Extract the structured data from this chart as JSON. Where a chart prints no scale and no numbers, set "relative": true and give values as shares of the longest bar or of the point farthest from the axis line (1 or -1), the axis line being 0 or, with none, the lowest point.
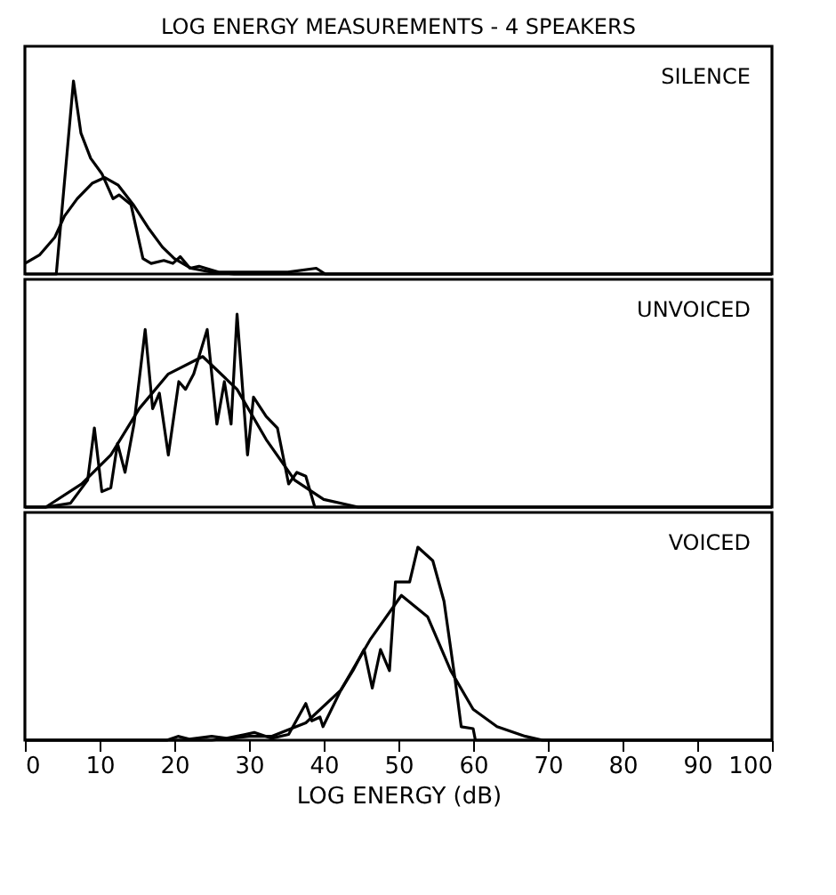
{
  "chart_data": [
    {
      "type": "line",
      "title": "LOG ENERGY MEASUREMENTS - 4 SPEAKERS",
      "relative": true,
      "xlim": [
        0,
        100
      ],
      "tick_labels": false,
      "annotations": [
        "SILENCE"
      ],
      "series": [
        {
          "color": "#000000",
          "x": [
            0,
            4.2,
            6.5,
            7.5,
            8.8,
            10.3,
            11.8,
            12.6,
            14.2,
            15.8,
            16.9,
            18.6,
            19.8,
            20.8,
            22.1,
            23.3,
            25.9,
            29.8,
            35.2,
            39,
            40.2,
            100
          ],
          "values": [
            0,
            0,
            1.0,
            0.73,
            0.6,
            0.52,
            0.39,
            0.41,
            0.36,
            0.08,
            0.055,
            0.07,
            0.055,
            0.09,
            0.03,
            0.04,
            0.01,
            0.01,
            0.01,
            0.03,
            0,
            0
          ]
        },
        {
          "color": "#000000",
          "x": [
            0,
            2,
            4,
            5.3,
            7,
            9,
            10.7,
            12.5,
            14.5,
            16.5,
            18.4,
            20,
            22.2,
            25,
            28,
            100
          ],
          "values": [
            0.055,
            0.1,
            0.19,
            0.3,
            0.39,
            0.47,
            0.5,
            0.46,
            0.36,
            0.24,
            0.14,
            0.08,
            0.03,
            0.01,
            0,
            0
          ]
        }
      ]
    },
    {
      "type": "line",
      "relative": true,
      "xlim": [
        0,
        100
      ],
      "tick_labels": false,
      "annotations": [
        "UNVOICED"
      ],
      "series": [
        {
          "color": "#000000",
          "x": [
            0,
            2.8,
            6.1,
            8.4,
            9.3,
            10.3,
            11.5,
            12.4,
            13.4,
            14.6,
            16.1,
            17.1,
            18.0,
            19.2,
            20.6,
            21.5,
            22.6,
            24.4,
            25.7,
            26.7,
            27.6,
            28.4,
            29.8,
            30.6,
            32.3,
            33.8,
            35.3,
            36.4,
            37.6,
            38.8,
            100
          ],
          "values": [
            0,
            0,
            0.02,
            0.14,
            0.41,
            0.08,
            0.1,
            0.33,
            0.18,
            0.43,
            0.92,
            0.51,
            0.59,
            0.27,
            0.65,
            0.61,
            0.69,
            0.92,
            0.43,
            0.65,
            0.43,
            1.0,
            0.27,
            0.57,
            0.47,
            0.41,
            0.12,
            0.18,
            0.16,
            0,
            0
          ]
        },
        {
          "color": "#000000",
          "x": [
            0,
            2.8,
            7.6,
            11.5,
            15.3,
            19.2,
            23.8,
            28.4,
            32.3,
            36.1,
            40,
            44.6,
            100
          ],
          "values": [
            0,
            0,
            0.12,
            0.27,
            0.51,
            0.69,
            0.78,
            0.61,
            0.35,
            0.14,
            0.04,
            0,
            0
          ]
        }
      ]
    },
    {
      "type": "line",
      "relative": true,
      "xlabel": "LOG ENERGY (dB)",
      "xlim": [
        0,
        100
      ],
      "xticks": [
        0,
        10,
        20,
        30,
        40,
        50,
        60,
        70,
        80,
        90,
        100
      ],
      "tick_labels": "x",
      "annotations": [
        "VOICED"
      ],
      "series": [
        {
          "color": "#000000",
          "x": [
            0,
            19,
            20.5,
            22,
            25,
            27,
            29.5,
            30.7,
            33,
            35.3,
            37.6,
            38.4,
            39.5,
            39.9,
            42.3,
            43.9,
            45.4,
            46.5,
            47.6,
            48.8,
            49.6,
            51.5,
            52.6,
            54.6,
            56.1,
            57.6,
            58.4,
            60,
            60.3,
            100
          ],
          "values": [
            0,
            0,
            0.02,
            0.005,
            0.02,
            0.01,
            0.03,
            0.04,
            0.01,
            0.03,
            0.19,
            0.1,
            0.12,
            0.07,
            0.26,
            0.36,
            0.47,
            0.27,
            0.47,
            0.36,
            0.82,
            0.82,
            1.0,
            0.93,
            0.72,
            0.31,
            0.07,
            0.06,
            0,
            0
          ]
        },
        {
          "color": "#000000",
          "x": [
            0,
            25,
            30,
            33,
            37.6,
            42.3,
            46.2,
            50.4,
            53.9,
            57,
            60,
            63.2,
            67,
            69.3,
            100
          ],
          "values": [
            0,
            0,
            0.02,
            0.02,
            0.09,
            0.26,
            0.52,
            0.75,
            0.64,
            0.36,
            0.16,
            0.07,
            0.02,
            0,
            0
          ]
        }
      ]
    }
  ]
}
